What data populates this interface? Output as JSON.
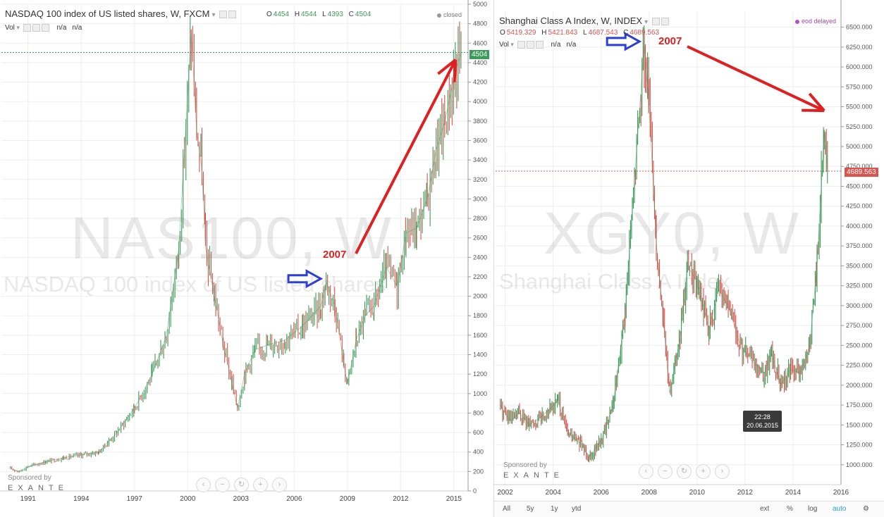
{
  "left": {
    "title": "NASDAQ 100 index of US listed shares, W, FXCM",
    "ohlc": {
      "o_label": "O",
      "o": "4454",
      "h_label": "H",
      "h": "4544",
      "l_label": "L",
      "l": "4393",
      "c_label": "C",
      "c": "4504"
    },
    "vol_label": "Vol",
    "vol_na1": "n/a",
    "vol_na2": "n/a",
    "status": "closed",
    "watermark_symbol": "NAS100, W",
    "watermark_name": "NASDAQ 100 index of US listed shares",
    "annotation_year": "2007",
    "last_price_tag": "4504",
    "sponsor_label": "Sponsored by",
    "sponsor_brand": "EXANTE",
    "colors": {
      "up": "#3c9a5a",
      "down": "#d9534f",
      "arrow_red": "#e02020",
      "arrow_blue": "#2b3fd6",
      "price_line": "#3c9a5a"
    }
  },
  "right": {
    "title": "Shanghai Class A Index, W, INDEX",
    "ohlc": {
      "o_label": "O",
      "o": "5419.329",
      "h_label": "H",
      "h": "5421.843",
      "l_label": "L",
      "l": "4687.543",
      "c_label": "C",
      "c": "4689.563"
    },
    "vol_label": "Vol",
    "vol_na1": "n/a",
    "vol_na2": "n/a",
    "status": "eod delayed",
    "watermark_symbol": "XGY0, W",
    "watermark_name": "Shanghai Class A Index",
    "annotation_year": "2007",
    "last_price_tag": "4689.563",
    "sponsor_label": "Sponsored by",
    "sponsor_brand": "EXANTE",
    "tooltip_time": "22:28",
    "tooltip_date": "20.06.2015",
    "bottom_bar": {
      "all": "All",
      "5y": "5y",
      "1y": "1y",
      "ytd": "ytd",
      "ext": "ext",
      "pct": "%",
      "log": "log",
      "auto": "auto"
    },
    "colors": {
      "up": "#3c9a5a",
      "down": "#d9534f",
      "status_dot": "#b54fc4",
      "price_line": "#d9534f",
      "tag": "#d9534f"
    }
  },
  "nav_icons": [
    "chevron-left-icon",
    "zoom-out-icon",
    "reset-icon",
    "zoom-in-icon",
    "chevron-right-icon"
  ],
  "chart_data": [
    {
      "type": "line",
      "title": "NASDAQ 100 index of US listed shares, W, FXCM",
      "xlabel": "",
      "ylabel": "",
      "x_ticks": [
        "1991",
        "1994",
        "1997",
        "2000",
        "2003",
        "2006",
        "2009",
        "2012",
        "2015"
      ],
      "y_ticks": [
        0,
        200,
        400,
        600,
        800,
        1000,
        1200,
        1400,
        1600,
        1800,
        2000,
        2200,
        2400,
        2600,
        2800,
        3000,
        3200,
        3400,
        3600,
        3800,
        4000,
        4200,
        4400,
        4600,
        4800,
        5000
      ],
      "xlim": [
        1989.5,
        2015.8
      ],
      "ylim": [
        0,
        5000
      ],
      "x": [
        1990.0,
        1990.5,
        1991.0,
        1992.0,
        1993.0,
        1994.0,
        1995.0,
        1996.0,
        1997.0,
        1998.0,
        1998.8,
        1999.5,
        2000.2,
        2000.5,
        2000.8,
        2001.0,
        2001.5,
        2002.0,
        2002.5,
        2002.8,
        2003.2,
        2003.8,
        2004.5,
        2005.5,
        2006.5,
        2007.5,
        2007.8,
        2008.3,
        2008.8,
        2009.0,
        2009.5,
        2010.0,
        2010.5,
        2011.2,
        2011.8,
        2012.3,
        2012.9,
        2013.5,
        2014.0,
        2014.5,
        2015.0,
        2015.4
      ],
      "series": [
        {
          "values": [
            230,
            200,
            250,
            300,
            340,
            370,
            400,
            600,
            850,
            1200,
            1600,
            2500,
            4700,
            3700,
            3300,
            2500,
            2000,
            1500,
            1100,
            850,
            1200,
            1450,
            1500,
            1550,
            1700,
            1900,
            2150,
            1900,
            1300,
            1100,
            1550,
            1800,
            1900,
            2300,
            2100,
            2650,
            2700,
            3000,
            3500,
            3800,
            4250,
            4504
          ]
        }
      ],
      "last_price": 4504,
      "grid": true,
      "annotations": [
        {
          "text": "2007",
          "points_to": [
            2015.2,
            4400
          ]
        },
        {
          "type": "blue-arrow",
          "points_to": [
            2007.8,
            2200
          ]
        }
      ]
    },
    {
      "type": "line",
      "title": "Shanghai Class A Index, W, INDEX",
      "xlabel": "",
      "ylabel": "",
      "x_ticks": [
        "2002",
        "2004",
        "2006",
        "2008",
        "2010",
        "2012",
        "2014",
        "2016"
      ],
      "y_ticks": [
        1000,
        1250,
        1500,
        1750,
        2000,
        2250,
        2500,
        2750,
        3000,
        3250,
        3500,
        3750,
        4000,
        4250,
        4500,
        4750,
        5000,
        5250,
        5500,
        5750,
        6000,
        6250,
        6500
      ],
      "xlim": [
        2001.6,
        2016.0
      ],
      "ylim": [
        750,
        6700
      ],
      "x": [
        2001.8,
        2002.2,
        2002.6,
        2003.0,
        2003.5,
        2004.2,
        2004.6,
        2005.2,
        2005.5,
        2006.0,
        2006.5,
        2007.0,
        2007.3,
        2007.8,
        2008.0,
        2008.3,
        2008.6,
        2008.85,
        2009.3,
        2009.6,
        2010.0,
        2010.5,
        2010.9,
        2011.3,
        2011.8,
        2012.3,
        2012.8,
        2013.1,
        2013.5,
        2013.9,
        2014.3,
        2014.7,
        2015.0,
        2015.3,
        2015.45
      ],
      "series": [
        {
          "values": [
            1750,
            1550,
            1650,
            1500,
            1600,
            1800,
            1400,
            1250,
            1100,
            1300,
            1750,
            2900,
            4200,
            6300,
            5500,
            3800,
            2800,
            1900,
            2600,
            3500,
            3300,
            2700,
            3200,
            3000,
            2500,
            2300,
            2150,
            2400,
            2000,
            2200,
            2150,
            2500,
            3500,
            5200,
            4689.563
          ]
        }
      ],
      "last_price": 4689.563,
      "grid": true,
      "annotations": [
        {
          "text": "2007",
          "points_to": [
            2015.35,
            5400
          ]
        },
        {
          "type": "blue-arrow",
          "points_to": [
            2007.8,
            6350
          ]
        }
      ],
      "tooltip": {
        "time": "22:28",
        "date": "20.06.2015"
      }
    }
  ]
}
